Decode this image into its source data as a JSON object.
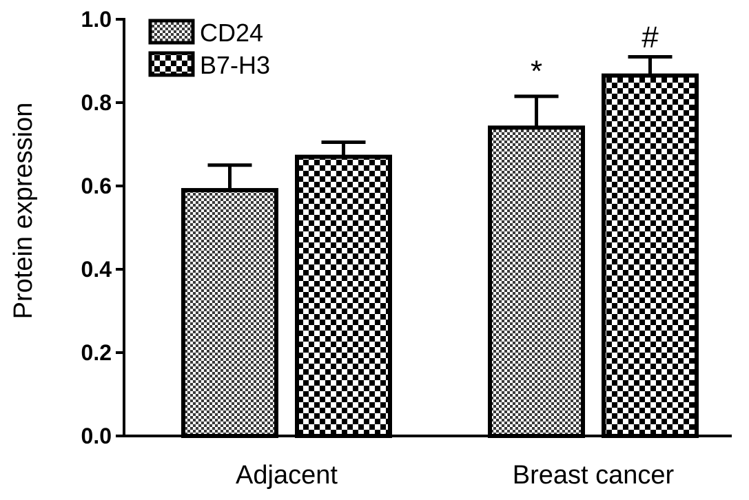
{
  "chart_data": {
    "type": "bar",
    "title": "",
    "xlabel": "",
    "ylabel": "Protein expression",
    "ylim": [
      0,
      1.0
    ],
    "yticks": [
      "0.0",
      "0.2",
      "0.4",
      "0.6",
      "0.8",
      "1.0"
    ],
    "categories": [
      "Adjacent",
      "Breast cancer"
    ],
    "series": [
      {
        "name": "CD24",
        "pattern": "fine-checker",
        "values": [
          0.59,
          0.74
        ],
        "errors": [
          0.06,
          0.075
        ],
        "annotations": [
          "",
          "*"
        ]
      },
      {
        "name": "B7-H3",
        "pattern": "coarse-checker",
        "values": [
          0.67,
          0.865
        ],
        "errors": [
          0.035,
          0.045
        ],
        "annotations": [
          "",
          "#"
        ]
      }
    ],
    "legend": {
      "position": "top-left"
    },
    "grid": false,
    "colors": {
      "bar_stroke": "#000000",
      "checker_dark": "#000000",
      "checker_light": "#ffffff"
    }
  }
}
